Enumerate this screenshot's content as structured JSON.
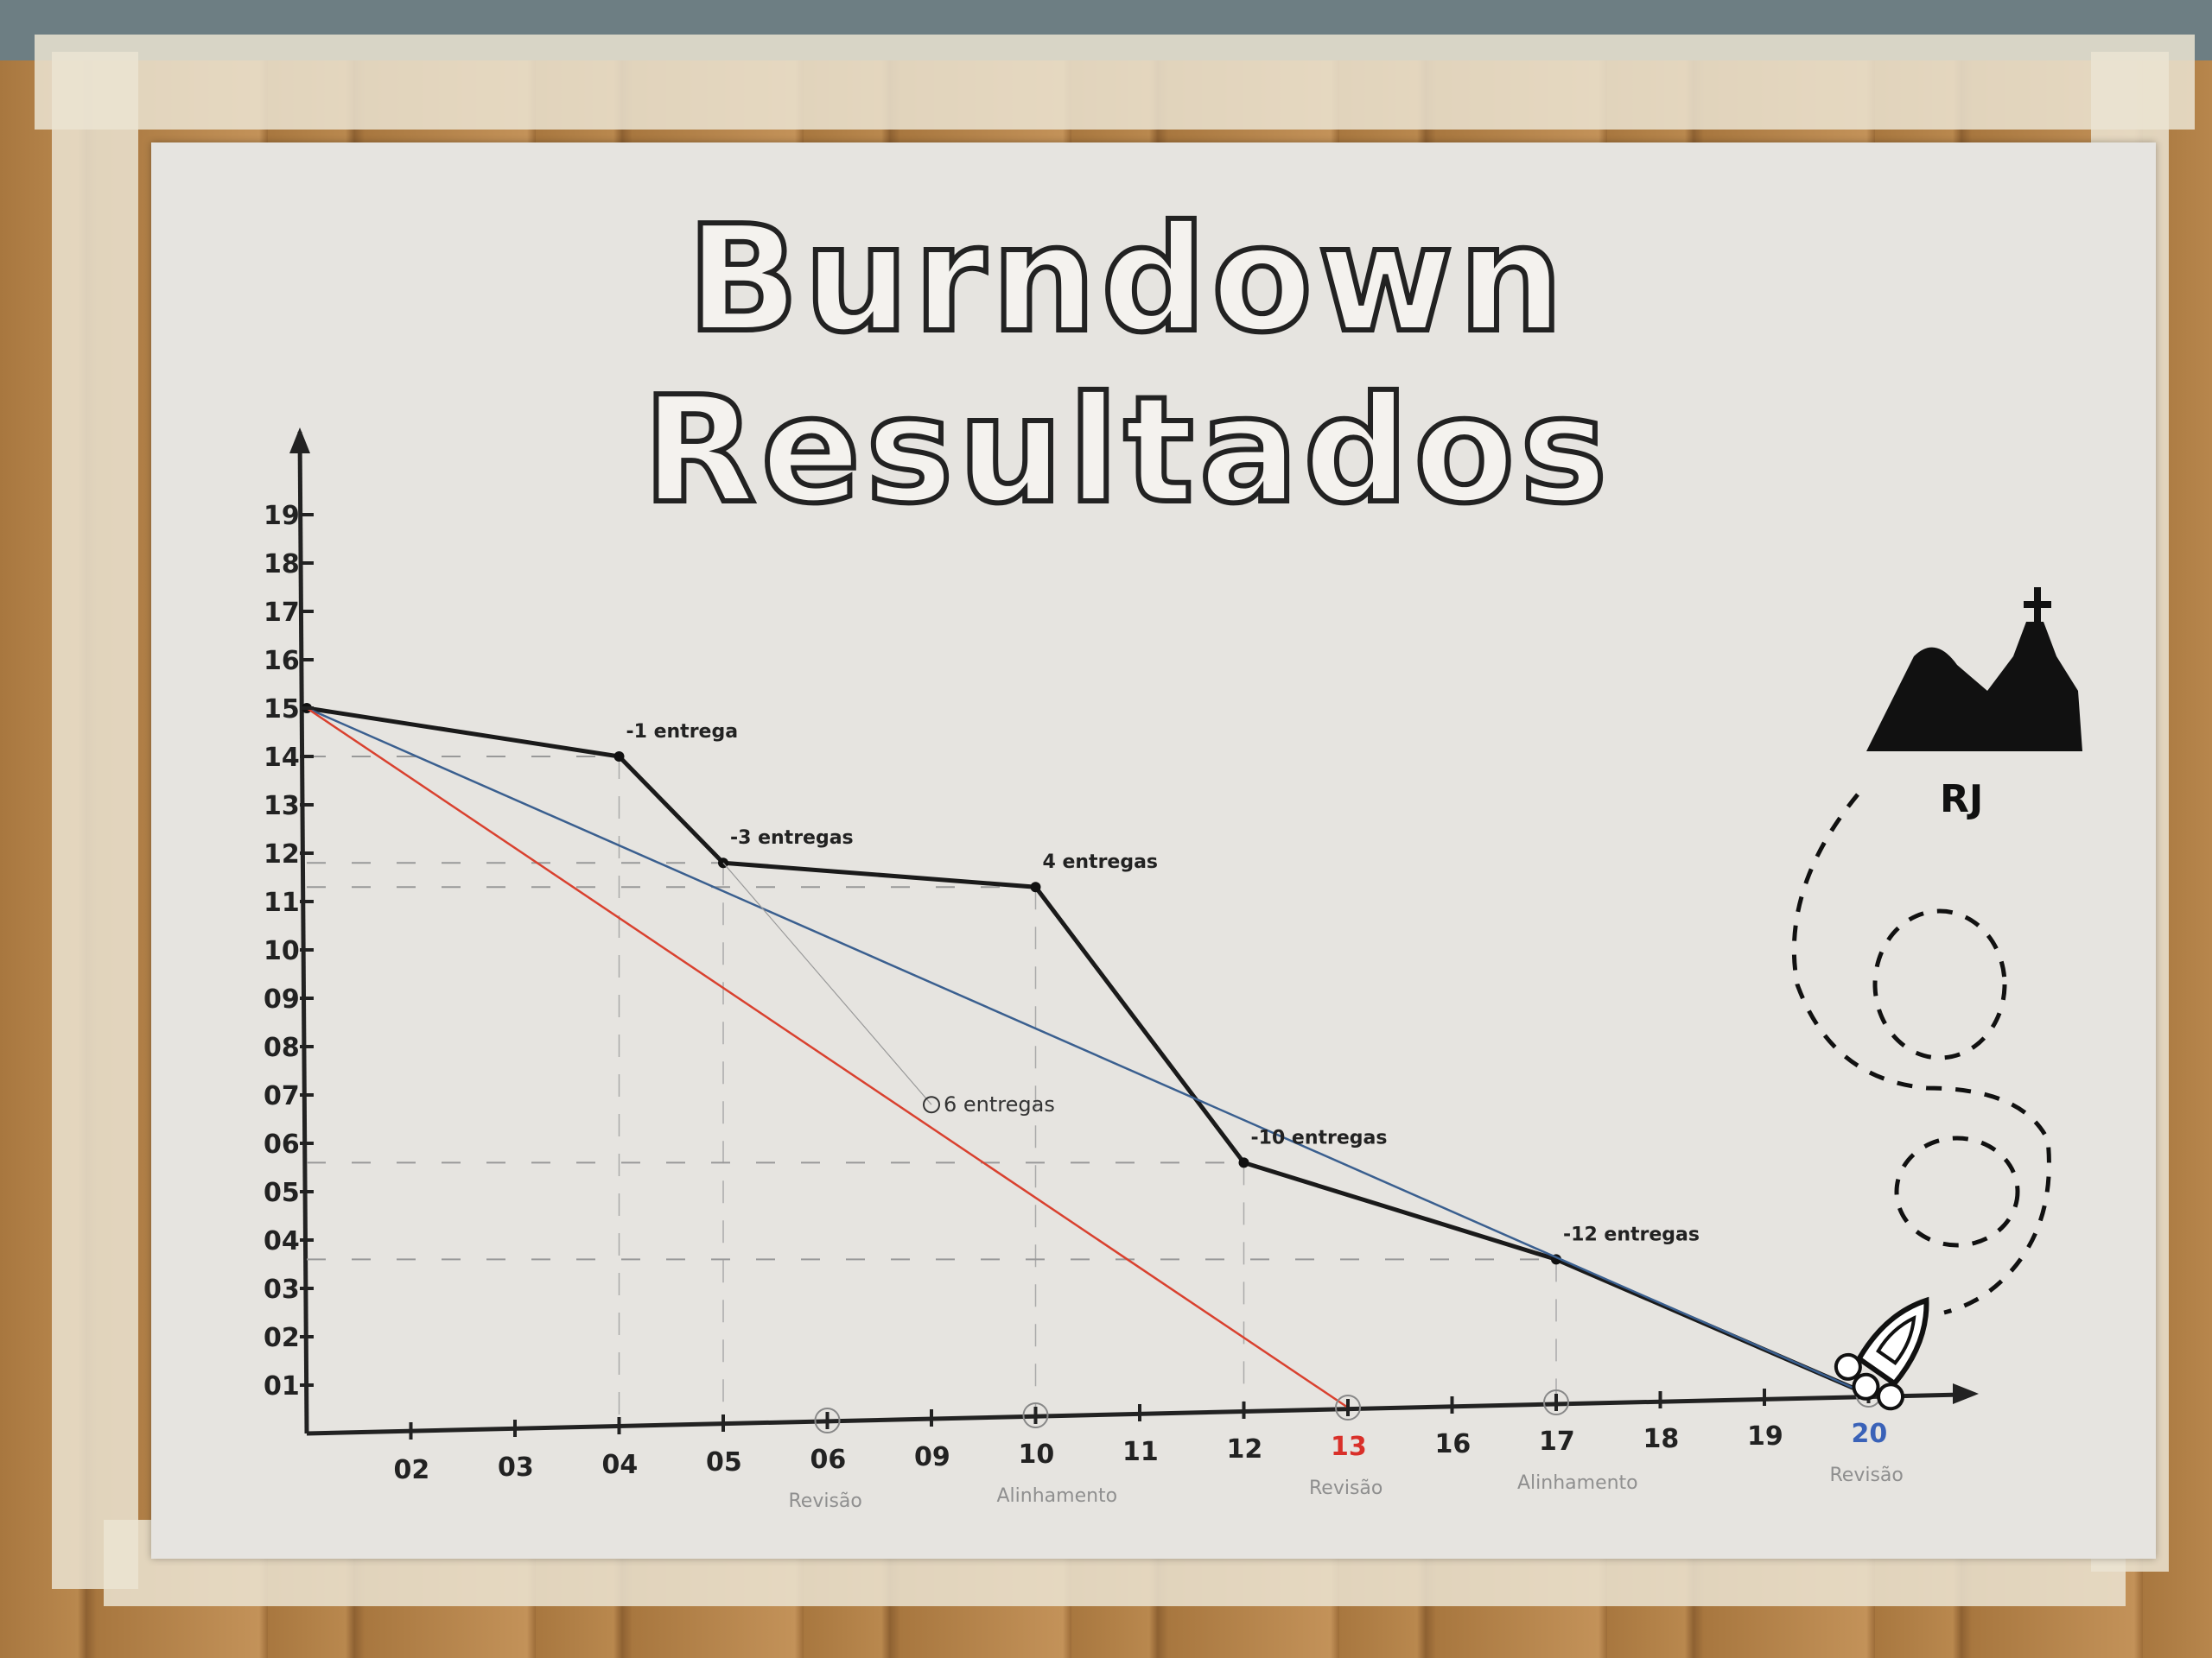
{
  "title": "Burndown Resultados",
  "chart_data": {
    "type": "line",
    "title": "Burndown Resultados",
    "xlabel": "",
    "ylabel": "",
    "x_tick_labels": [
      "",
      "02",
      "03",
      "04",
      "05",
      "06",
      "09",
      "10",
      "11",
      "12",
      "13",
      "16",
      "17",
      "18",
      "19",
      "20"
    ],
    "x_tick_colors": {
      "13": "#d9302a",
      "20": "#3a62b8"
    },
    "y_tick_labels": [
      "01",
      "02",
      "03",
      "04",
      "05",
      "06",
      "07",
      "08",
      "09",
      "10",
      "11",
      "12",
      "13",
      "14",
      "15",
      "16",
      "17",
      "18",
      "19"
    ],
    "ylim": [
      0,
      19
    ],
    "grid": "dashed guide lines only",
    "series": [
      {
        "color": "#1a1a1a",
        "style": "thick",
        "points": [
          [
            "",
            15
          ],
          [
            "04",
            14
          ],
          [
            "05",
            11.8
          ],
          [
            "10",
            11.3
          ],
          [
            "12",
            5.6
          ],
          [
            "17",
            3.6
          ],
          [
            "20",
            0
          ]
        ]
      },
      {
        "color": "#3a5f8f",
        "style": "thin",
        "points": [
          [
            "",
            15
          ],
          [
            "20",
            0
          ]
        ]
      },
      {
        "color": "#d9412f",
        "style": "thin",
        "points": [
          [
            "",
            15
          ],
          [
            "13",
            0
          ]
        ]
      },
      {
        "color": "#9a9a9a",
        "style": "hairline",
        "points": [
          [
            "05",
            11.8
          ],
          [
            "09",
            6.8
          ]
        ]
      }
    ],
    "annotations": [
      {
        "text": "-1 entrega",
        "x": "04",
        "y": 14
      },
      {
        "text": "-3 entregas",
        "x": "05",
        "y": 11.8
      },
      {
        "text": "4 entregas",
        "x": "10",
        "y": 11.3
      },
      {
        "text": "6 entregas",
        "x": "09",
        "y": 6.8
      },
      {
        "text": "-10 entregas",
        "x": "12",
        "y": 5.6
      },
      {
        "text": "-12 entregas",
        "x": "17",
        "y": 3.6
      }
    ],
    "milestones": [
      {
        "x": "06",
        "label": "Revisão"
      },
      {
        "x": "10",
        "label": "Alinhamento"
      },
      {
        "x": "13",
        "label": "Revisão"
      },
      {
        "x": "17",
        "label": "Alinhamento"
      },
      {
        "x": "20",
        "label": "Revisão"
      }
    ]
  },
  "goal_label": "RJ",
  "icons": [
    "rocket-icon",
    "mountain-christ-redeemer-icon",
    "dashed-path-icon"
  ]
}
